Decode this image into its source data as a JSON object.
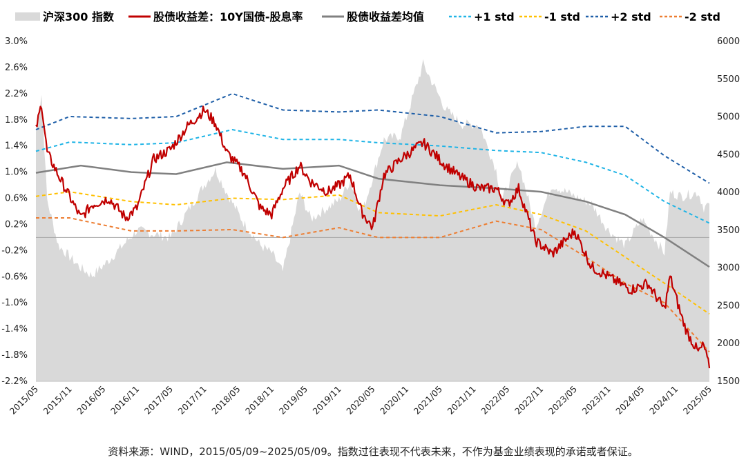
{
  "footer": "资料来源：WIND，2015/05/09~2025/05/09。指数过往表现不代表未来，不作为基金业绩表现的承诺或者保证。",
  "chart_data": {
    "type": "line",
    "legend_position": "top",
    "grid": false,
    "colors": {
      "index_area": "#d9d9d9",
      "spread": "#c00000",
      "mean": "#808080",
      "plus1": "#1fb4e6",
      "minus1": "#ffc000",
      "plus2": "#1f5fa8",
      "minus2": "#ed7d31"
    },
    "y_left": {
      "min": -2.2,
      "max": 3.0,
      "ticks": [
        "3.0%",
        "2.6%",
        "2.2%",
        "1.8%",
        "1.4%",
        "1.0%",
        "0.6%",
        "0.2%",
        "-0.2%",
        "-0.6%",
        "-1.0%",
        "-1.4%",
        "-1.8%",
        "-2.2%"
      ]
    },
    "y_right": {
      "min": 1500,
      "max": 6000,
      "ticks": [
        "6000",
        "5500",
        "5000",
        "4500",
        "4000",
        "3500",
        "3000",
        "2500",
        "2000",
        "1500"
      ]
    },
    "x_range": [
      "2015-05",
      "2025-05"
    ],
    "x_ticks": [
      "2015/05",
      "2015/11",
      "2016/05",
      "2016/11",
      "2017/05",
      "2017/11",
      "2018/05",
      "2018/11",
      "2019/05",
      "2019/11",
      "2020/05",
      "2020/11",
      "2021/05",
      "2021/11",
      "2022/05",
      "2022/11",
      "2023/05",
      "2023/11",
      "2024/05",
      "2024/11",
      "2025/05"
    ],
    "series": [
      {
        "key": "index",
        "name": "沪深300 指数",
        "axis": "right",
        "style": "area",
        "x": [
          "2015-05",
          "2015-06",
          "2015-07",
          "2015-09",
          "2016-01",
          "2016-03",
          "2016-06",
          "2016-11",
          "2017-05",
          "2017-11",
          "2018-01",
          "2018-03",
          "2018-06",
          "2018-09",
          "2018-11",
          "2019-01",
          "2019-04",
          "2019-06",
          "2019-11",
          "2020-01",
          "2020-03",
          "2020-07",
          "2020-10",
          "2021-02",
          "2021-06",
          "2021-09",
          "2021-12",
          "2022-03",
          "2022-04",
          "2022-07",
          "2022-10",
          "2023-01",
          "2023-05",
          "2023-08",
          "2023-11",
          "2024-02",
          "2024-05",
          "2024-09",
          "2024-10",
          "2024-12",
          "2025-03",
          "2025-04",
          "2025-05"
        ],
        "values": [
          4800,
          5300,
          3900,
          3300,
          3000,
          2900,
          3100,
          3500,
          3400,
          4100,
          4300,
          4000,
          3600,
          3300,
          3200,
          2950,
          4000,
          3650,
          3900,
          4150,
          3700,
          4700,
          4750,
          5700,
          5100,
          4900,
          4900,
          4300,
          3900,
          4400,
          3550,
          4100,
          3950,
          3850,
          3500,
          3300,
          3650,
          3200,
          4000,
          3950,
          4000,
          3800,
          3850
        ]
      },
      {
        "key": "spread",
        "name": "股债收益差：10Y国债-股息率",
        "axis": "left",
        "style": "line",
        "x": [
          "2015-05",
          "2015-06",
          "2015-07",
          "2015-09",
          "2016-01",
          "2016-03",
          "2016-06",
          "2016-09",
          "2016-11",
          "2017-02",
          "2017-05",
          "2017-08",
          "2017-11",
          "2018-01",
          "2018-03",
          "2018-06",
          "2018-09",
          "2018-11",
          "2019-01",
          "2019-04",
          "2019-06",
          "2019-09",
          "2019-11",
          "2020-01",
          "2020-03",
          "2020-05",
          "2020-07",
          "2020-10",
          "2021-02",
          "2021-06",
          "2021-09",
          "2021-12",
          "2022-03",
          "2022-05",
          "2022-07",
          "2022-10",
          "2023-01",
          "2023-05",
          "2023-08",
          "2023-11",
          "2024-01",
          "2024-03",
          "2024-06",
          "2024-09",
          "2024-10",
          "2024-12",
          "2025-01",
          "2025-03",
          "2025-04",
          "2025-05"
        ],
        "values": [
          1.65,
          2.05,
          1.3,
          0.95,
          0.3,
          0.5,
          0.6,
          0.3,
          0.45,
          1.2,
          1.35,
          1.7,
          1.95,
          1.75,
          1.3,
          1.0,
          0.45,
          0.35,
          0.75,
          1.1,
          0.85,
          0.7,
          0.8,
          0.95,
          0.4,
          0.15,
          0.95,
          1.2,
          1.45,
          1.1,
          0.9,
          0.75,
          0.75,
          0.5,
          0.75,
          -0.05,
          -0.25,
          0.1,
          -0.45,
          -0.6,
          -0.7,
          -0.8,
          -0.7,
          -1.1,
          -0.6,
          -1.2,
          -1.45,
          -1.75,
          -1.65,
          -2.0
        ]
      },
      {
        "key": "mean",
        "name": "股债收益差均值",
        "axis": "left",
        "style": "line",
        "x": [
          "2015-05",
          "2016-01",
          "2016-10",
          "2017-06",
          "2018-03",
          "2019-01",
          "2019-11",
          "2020-06",
          "2021-05",
          "2022-03",
          "2022-11",
          "2023-07",
          "2024-02",
          "2024-09",
          "2025-05"
        ],
        "values": [
          0.99,
          1.1,
          1.0,
          0.97,
          1.15,
          1.05,
          1.1,
          0.9,
          0.8,
          0.75,
          0.7,
          0.55,
          0.35,
          0.0,
          -0.45
        ]
      },
      {
        "key": "plus1",
        "name": "+1 std",
        "axis": "left",
        "style": "dashed",
        "x": [
          "2015-05",
          "2015-11",
          "2016-10",
          "2017-06",
          "2018-04",
          "2019-01",
          "2019-11",
          "2020-06",
          "2021-05",
          "2022-03",
          "2022-11",
          "2023-07",
          "2024-02",
          "2024-09",
          "2025-05"
        ],
        "values": [
          1.32,
          1.46,
          1.42,
          1.45,
          1.65,
          1.5,
          1.5,
          1.45,
          1.4,
          1.33,
          1.3,
          1.15,
          0.95,
          0.55,
          0.22
        ]
      },
      {
        "key": "minus1",
        "name": "-1 std",
        "axis": "left",
        "style": "dashed",
        "x": [
          "2015-05",
          "2015-11",
          "2016-10",
          "2017-06",
          "2018-04",
          "2019-01",
          "2019-11",
          "2020-06",
          "2021-05",
          "2022-03",
          "2022-11",
          "2023-07",
          "2024-02",
          "2024-09",
          "2025-05"
        ],
        "values": [
          0.63,
          0.7,
          0.55,
          0.5,
          0.6,
          0.58,
          0.65,
          0.38,
          0.33,
          0.5,
          0.35,
          0.1,
          -0.3,
          -0.7,
          -1.17
        ]
      },
      {
        "key": "plus2",
        "name": "+2 std",
        "axis": "left",
        "style": "dashed",
        "x": [
          "2015-05",
          "2015-11",
          "2016-10",
          "2017-06",
          "2018-04",
          "2019-01",
          "2019-11",
          "2020-06",
          "2021-05",
          "2022-03",
          "2022-11",
          "2023-07",
          "2024-02",
          "2024-09",
          "2025-05"
        ],
        "values": [
          1.65,
          1.85,
          1.82,
          1.85,
          2.2,
          1.95,
          1.92,
          1.95,
          1.85,
          1.6,
          1.62,
          1.7,
          1.7,
          1.25,
          0.83
        ]
      },
      {
        "key": "minus2",
        "name": "-2 std",
        "axis": "left",
        "style": "dashed",
        "x": [
          "2015-05",
          "2015-11",
          "2016-10",
          "2017-06",
          "2018-04",
          "2019-01",
          "2019-11",
          "2020-06",
          "2021-05",
          "2022-03",
          "2022-11",
          "2023-07",
          "2024-02",
          "2024-09",
          "2025-05"
        ],
        "values": [
          0.3,
          0.3,
          0.1,
          0.1,
          0.12,
          0.0,
          0.15,
          0.0,
          0.0,
          0.25,
          0.12,
          -0.3,
          -0.7,
          -1.0,
          -1.75
        ]
      }
    ]
  }
}
